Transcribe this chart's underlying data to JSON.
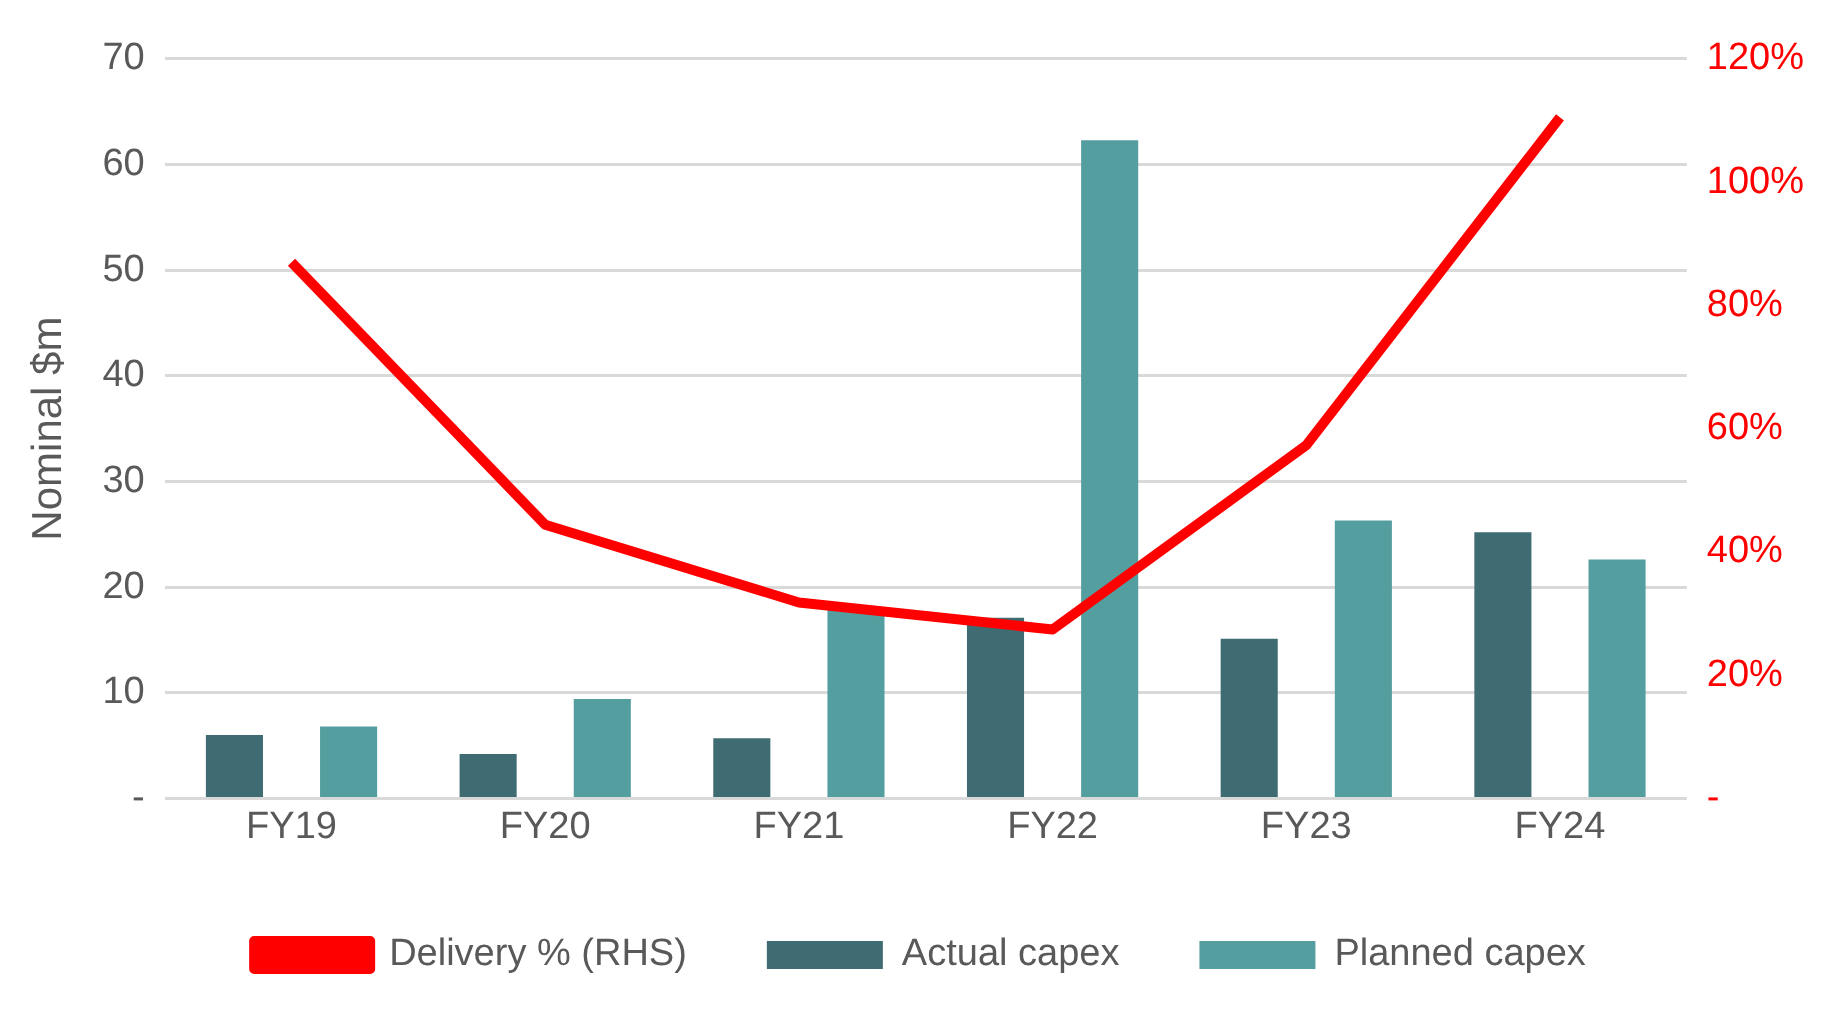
{
  "chart_data": {
    "type": "bar",
    "ylabel": "Nominal $m",
    "categories": [
      "FY19",
      "FY20",
      "FY21",
      "FY22",
      "FY23",
      "FY24"
    ],
    "series": [
      {
        "name": "Actual capex",
        "color": "#3f6b73",
        "values": [
          6,
          4.2,
          5.7,
          17.1,
          15.1,
          25.2
        ]
      },
      {
        "name": "Planned capex",
        "color": "#549e9f",
        "values": [
          6.8,
          9.4,
          18,
          62.3,
          26.3,
          22.6
        ]
      },
      {
        "name": "Delivery % (RHS)",
        "type": "line",
        "axis": "y2",
        "color": "#ff0000",
        "marker": "none",
        "values": [
          87,
          44.4,
          31.8,
          27.4,
          57.3,
          110.5
        ]
      }
    ],
    "ylim": [
      0,
      70
    ],
    "yticks": [
      {
        "value": 0,
        "label": "-"
      },
      10,
      20,
      30,
      40,
      50,
      60,
      70
    ],
    "y2lim": [
      0,
      120
    ],
    "y2ticks": [
      {
        "value": 0,
        "label": "-"
      },
      {
        "value": 20,
        "label": "20%"
      },
      {
        "value": 40,
        "label": "40%"
      },
      {
        "value": 60,
        "label": "60%"
      },
      {
        "value": 80,
        "label": "80%"
      },
      {
        "value": 100,
        "label": "100%"
      },
      {
        "value": 120,
        "label": "120%"
      }
    ],
    "grid": "y",
    "legend": "bottom"
  }
}
